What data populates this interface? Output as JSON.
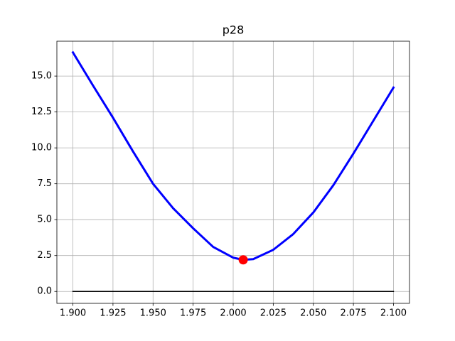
{
  "chart_data": {
    "type": "line",
    "title": "p28",
    "xlim": [
      1.89,
      2.11
    ],
    "ylim": [
      -0.83,
      17.43
    ],
    "xticks": [
      {
        "value": 1.9,
        "label": "1.900"
      },
      {
        "value": 1.925,
        "label": "1.925"
      },
      {
        "value": 1.95,
        "label": "1.950"
      },
      {
        "value": 1.975,
        "label": "1.975"
      },
      {
        "value": 2.0,
        "label": "2.000"
      },
      {
        "value": 2.025,
        "label": "2.025"
      },
      {
        "value": 2.05,
        "label": "2.050"
      },
      {
        "value": 2.075,
        "label": "2.075"
      },
      {
        "value": 2.1,
        "label": "2.100"
      }
    ],
    "yticks": [
      {
        "value": 0,
        "label": "0.0"
      },
      {
        "value": 2.5,
        "label": "2.5"
      },
      {
        "value": 5,
        "label": "5.0"
      },
      {
        "value": 7.5,
        "label": "7.5"
      },
      {
        "value": 10,
        "label": "10.0"
      },
      {
        "value": 12.5,
        "label": "12.5"
      },
      {
        "value": 15,
        "label": "15.0"
      }
    ],
    "grid": true,
    "series": [
      {
        "color": "#0000ff",
        "style": "line",
        "width": 3,
        "x": [
          1.9,
          1.9125,
          1.925,
          1.9375,
          1.95,
          1.9625,
          1.975,
          1.9875,
          2.0,
          2.00625,
          2.0125,
          2.025,
          2.0375,
          2.05,
          2.0625,
          2.075,
          2.0875,
          2.1
        ],
        "values": [
          16.65,
          14.35,
          12.1,
          9.75,
          7.5,
          5.8,
          4.4,
          3.1,
          2.35,
          2.2,
          2.25,
          2.9,
          4.0,
          5.5,
          7.4,
          9.6,
          11.9,
          14.2
        ]
      },
      {
        "color": "#000000",
        "style": "line",
        "width": 1.5,
        "x": [
          1.9,
          2.1
        ],
        "values": [
          0,
          0
        ]
      },
      {
        "color": "#ff0000",
        "style": "marker",
        "x": [
          2.00625
        ],
        "values": [
          2.2
        ]
      }
    ]
  }
}
